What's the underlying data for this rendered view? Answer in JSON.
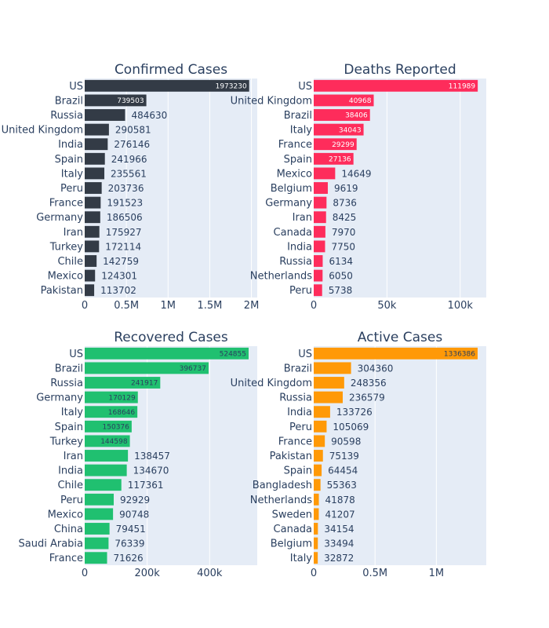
{
  "chart_data": [
    {
      "type": "bar",
      "orientation": "h",
      "title": "Confirmed Cases",
      "color": "#333b46",
      "inside_label_color": "#ffffff",
      "xlim": [
        0,
        2070000
      ],
      "xticks": [
        {
          "value": 0,
          "label": "0"
        },
        {
          "value": 500000,
          "label": "0.5M"
        },
        {
          "value": 1000000,
          "label": "1M"
        },
        {
          "value": 1500000,
          "label": "1.5M"
        },
        {
          "value": 2000000,
          "label": "2M"
        }
      ],
      "categories": [
        "US",
        "Brazil",
        "Russia",
        "United Kingdom",
        "India",
        "Spain",
        "Italy",
        "Peru",
        "France",
        "Germany",
        "Iran",
        "Turkey",
        "Chile",
        "Mexico",
        "Pakistan"
      ],
      "values": [
        1973230,
        739503,
        484630,
        290581,
        276146,
        241966,
        235561,
        203736,
        191523,
        186506,
        175927,
        172114,
        142759,
        124301,
        113702
      ],
      "labels": [
        "1973230",
        "739503",
        "484630",
        "290581",
        "276146",
        "241966",
        "235561",
        "203736",
        "191523",
        "186506",
        "175927",
        "172114",
        "142759",
        "124301",
        "113702"
      ]
    },
    {
      "type": "bar",
      "orientation": "h",
      "title": "Deaths Reported",
      "color": "#fe2c5b",
      "inside_label_color": "#ffffff",
      "xlim": [
        0,
        117800
      ],
      "xticks": [
        {
          "value": 0,
          "label": "0"
        },
        {
          "value": 50000,
          "label": "50k"
        },
        {
          "value": 100000,
          "label": "100k"
        }
      ],
      "categories": [
        "US",
        "United Kingdom",
        "Brazil",
        "Italy",
        "France",
        "Spain",
        "Mexico",
        "Belgium",
        "Germany",
        "Iran",
        "Canada",
        "India",
        "Russia",
        "Netherlands",
        "Peru"
      ],
      "values": [
        111989,
        40968,
        38406,
        34043,
        29299,
        27136,
        14649,
        9619,
        8736,
        8425,
        7970,
        7750,
        6134,
        6050,
        5738
      ],
      "labels": [
        "111989",
        "40968",
        "38406",
        "34043",
        "29299",
        "27136",
        "14649",
        "9619",
        "8736",
        "8425",
        "7970",
        "7750",
        "6134",
        "6050",
        "5738"
      ]
    },
    {
      "type": "bar",
      "orientation": "h",
      "title": "Recovered Cases",
      "color": "#20c070",
      "inside_label_color": "#2a3f5f",
      "xlim": [
        0,
        552500
      ],
      "xticks": [
        {
          "value": 0,
          "label": "0"
        },
        {
          "value": 200000,
          "label": "200k"
        },
        {
          "value": 400000,
          "label": "400k"
        }
      ],
      "categories": [
        "US",
        "Brazil",
        "Russia",
        "Germany",
        "Italy",
        "Spain",
        "Turkey",
        "Iran",
        "India",
        "Chile",
        "Peru",
        "Mexico",
        "China",
        "Saudi Arabia",
        "France"
      ],
      "values": [
        524855,
        396737,
        241917,
        170129,
        168646,
        150376,
        144598,
        138457,
        134670,
        117361,
        92929,
        90748,
        79451,
        76339,
        71626
      ],
      "labels": [
        "524855",
        "396737",
        "241917",
        "170129",
        "168646",
        "150376",
        "144598",
        "138457",
        "134670",
        "117361",
        "92929",
        "90748",
        "79451",
        "76339",
        "71626"
      ]
    },
    {
      "type": "bar",
      "orientation": "h",
      "title": "Active Cases",
      "color": "#ff9907",
      "inside_label_color": "#2a3f5f",
      "xlim": [
        0,
        1406700
      ],
      "xticks": [
        {
          "value": 0,
          "label": "0"
        },
        {
          "value": 500000,
          "label": "0.5M"
        },
        {
          "value": 1000000,
          "label": "1M"
        }
      ],
      "categories": [
        "US",
        "Brazil",
        "United Kingdom",
        "Russia",
        "India",
        "Peru",
        "France",
        "Pakistan",
        "Spain",
        "Bangladesh",
        "Netherlands",
        "Sweden",
        "Canada",
        "Belgium",
        "Italy"
      ],
      "values": [
        1336386,
        304360,
        248356,
        236579,
        133726,
        105069,
        90598,
        75139,
        64454,
        55363,
        41878,
        41207,
        34154,
        33494,
        32872
      ],
      "labels": [
        "1336386",
        "304360",
        "248356",
        "236579",
        "133726",
        "105069",
        "90598",
        "75139",
        "64454",
        "55363",
        "41878",
        "41207",
        "34154",
        "33494",
        "32872"
      ]
    }
  ],
  "style": {
    "plot_bg": "#e5ecf6",
    "grid_color": "#ffffff",
    "text_color": "#2a3f5f"
  }
}
